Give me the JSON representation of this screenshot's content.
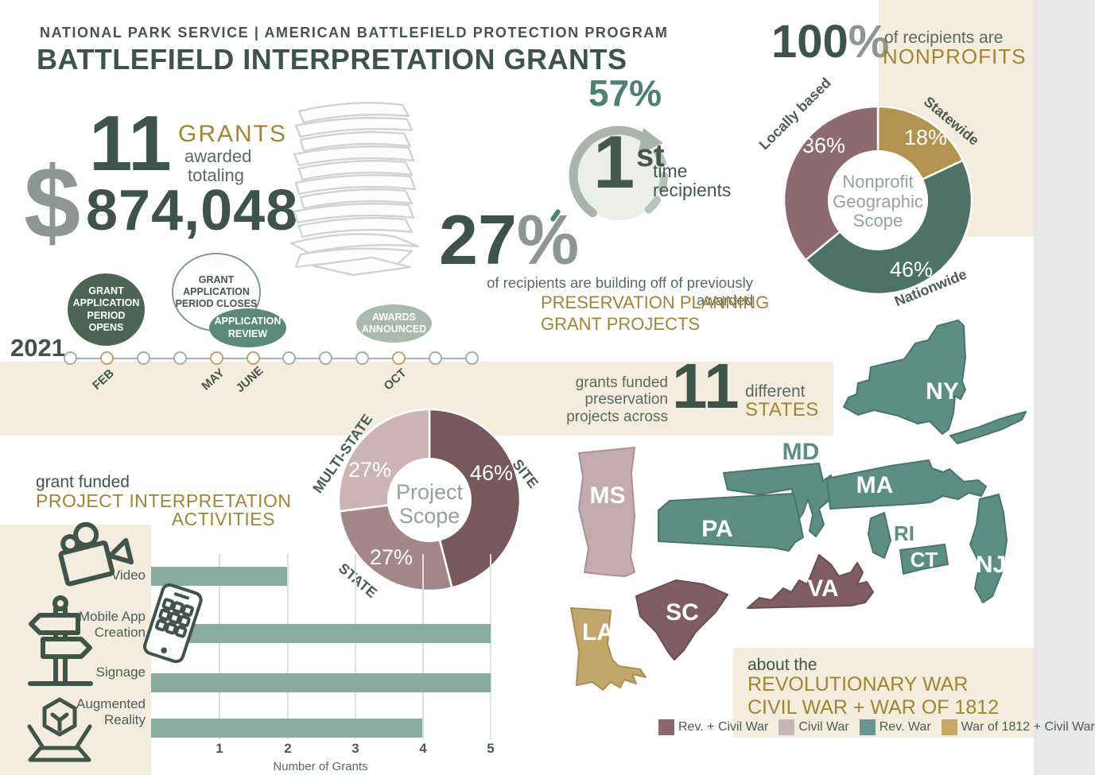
{
  "header": {
    "kicker": "NATIONAL PARK SERVICE | AMERICAN BATTLEFIELD PROTECTION PROGRAM",
    "title": "BATTLEFIELD INTERPRETATION GRANTS"
  },
  "totals": {
    "count": "11",
    "grants_label": "GRANTS",
    "awarded": "awarded",
    "totaling": "totaling",
    "dollar_sign": "$",
    "amount": "874,048"
  },
  "first_time": {
    "percent": "57%",
    "rank_number": "1",
    "rank_suffix": "st",
    "caption_line1": "time",
    "caption_line2": "recipients"
  },
  "building_off": {
    "percent_number": "27",
    "percent_sign": "%",
    "caption": "of recipients are building off of previously awarded",
    "highlight": "PRESERVATION PLANNING\nGRANT PROJECTS"
  },
  "nonprofits": {
    "percent_number": "100",
    "percent_sign": "%",
    "caption_line1": "of recipients are",
    "caption_line2": "NONPROFITS"
  },
  "nonprofit_scope_chart": {
    "center_label": "Nonprofit\nGeographic\nScope",
    "slices": [
      {
        "label": "Locally based",
        "value": "36%"
      },
      {
        "label": "Statewide",
        "value": "18%"
      },
      {
        "label": "Nationwide",
        "value": "46%"
      }
    ]
  },
  "timeline": {
    "year": "2021",
    "ticks": [
      {
        "label": "",
        "highlight": false
      },
      {
        "label": "FEB",
        "highlight": true
      },
      {
        "label": "",
        "highlight": false
      },
      {
        "label": "",
        "highlight": false
      },
      {
        "label": "MAY",
        "highlight": true
      },
      {
        "label": "JUNE",
        "highlight": true
      },
      {
        "label": "",
        "highlight": false
      },
      {
        "label": "",
        "highlight": false
      },
      {
        "label": "",
        "highlight": false
      },
      {
        "label": "OCT",
        "highlight": true
      },
      {
        "label": "",
        "highlight": false
      },
      {
        "label": "",
        "highlight": false
      }
    ],
    "events": [
      {
        "text": "GRANT\nAPPLICATION\nPERIOD\nOPENS"
      },
      {
        "text": "GRANT\nAPPLICATION\nPERIOD CLOSES"
      },
      {
        "text": "APPLICATION\nREVIEW"
      },
      {
        "text": "AWARDS\nANNOUNCED"
      }
    ]
  },
  "states_funded": {
    "caption": "grants funded\npreservation\nprojects across",
    "count": "11",
    "suffix_line1": "different",
    "suffix_line2": "STATES"
  },
  "project_scope_chart": {
    "center_label": "Project\nScope",
    "slices": [
      {
        "label": "SITE",
        "value": "46%"
      },
      {
        "label": "STATE",
        "value": "27%"
      },
      {
        "label": "MULTI-STATE",
        "value": "27%"
      }
    ]
  },
  "activities": {
    "kicker": "grant funded",
    "title_line1": "PROJECT INTERPRETATION",
    "title_line2": "ACTIVITIES",
    "xlabel": "Number of Grants",
    "ticks": [
      "1",
      "2",
      "3",
      "4",
      "5"
    ],
    "rows": [
      {
        "label": "Video",
        "value": 2,
        "icon": "video-camera"
      },
      {
        "label": "Mobile App\nCreation",
        "value": 5,
        "icon": "smartphone"
      },
      {
        "label": "Signage",
        "value": 5,
        "icon": "signpost"
      },
      {
        "label": "Augmented\nReality",
        "value": 4,
        "icon": "augmented-reality"
      }
    ]
  },
  "map": {
    "about_line1": "about the",
    "about_line2": "REVOLUTIONARY WAR\nCIVIL WAR + WAR OF 1812",
    "states": [
      {
        "id": "NY",
        "category": "Rev. War"
      },
      {
        "id": "MD",
        "category": "Rev. War"
      },
      {
        "id": "MA",
        "category": "Rev. War"
      },
      {
        "id": "MS",
        "category": "Civil War"
      },
      {
        "id": "PA",
        "category": "Rev. War"
      },
      {
        "id": "RI",
        "category": "Rev. War"
      },
      {
        "id": "CT",
        "category": "Rev. War"
      },
      {
        "id": "NJ",
        "category": "Rev. War"
      },
      {
        "id": "VA",
        "category": "Rev. + Civil War"
      },
      {
        "id": "SC",
        "category": "Rev. + Civil War"
      },
      {
        "id": "LA",
        "category": "War of 1812 + Civil War"
      }
    ],
    "legend": [
      {
        "label": "Rev. + Civil War",
        "color": "#8a686d"
      },
      {
        "label": "Civil War",
        "color": "#c8b3b8"
      },
      {
        "label": "Rev. War",
        "color": "#6b958c"
      },
      {
        "label": "War of 1812 + Civil War",
        "color": "#c5a865"
      }
    ]
  },
  "chart_data": [
    {
      "type": "pie",
      "title": "Nonprofit Geographic Scope",
      "labels": [
        "Statewide",
        "Nationwide",
        "Locally based"
      ],
      "values": [
        18,
        46,
        36
      ],
      "unit": "%",
      "colors": [
        "#b49350",
        "#4d7268",
        "#8c6a70"
      ]
    },
    {
      "type": "pie",
      "title": "Project Scope",
      "labels": [
        "SITE",
        "STATE",
        "MULTI-STATE"
      ],
      "values": [
        46,
        27,
        27
      ],
      "unit": "%",
      "colors": [
        "#76585e",
        "#a3878c",
        "#cbb3b8"
      ]
    },
    {
      "type": "bar",
      "orientation": "horizontal",
      "title": "grant funded PROJECT INTERPRETATION ACTIVITIES",
      "categories": [
        "Video",
        "Mobile App Creation",
        "Signage",
        "Augmented Reality"
      ],
      "values": [
        2,
        5,
        5,
        4
      ],
      "xlabel": "Number of Grants",
      "xlim": [
        0,
        5
      ],
      "bar_color": "#87ab9d"
    }
  ]
}
